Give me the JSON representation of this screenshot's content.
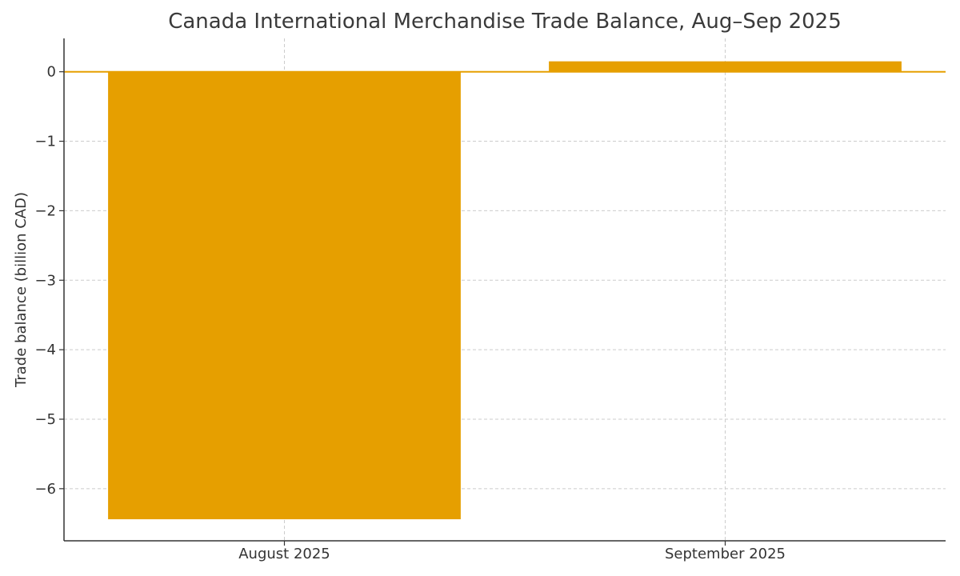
{
  "chart_data": {
    "type": "bar",
    "title": "Canada International Merchandise Trade Balance, Aug–Sep 2025",
    "xlabel": "",
    "ylabel": "Trade balance (billion CAD)",
    "categories": [
      "August 2025",
      "September 2025"
    ],
    "values": [
      -6.44,
      0.15
    ],
    "ylim": [
      -6.75,
      0.48
    ],
    "yticks": [
      0,
      -1,
      -2,
      -3,
      -4,
      -5,
      -6
    ],
    "ytick_labels": [
      "0",
      "−1",
      "−2",
      "−3",
      "−4",
      "−5",
      "−6"
    ],
    "grid": true,
    "zero_line": true,
    "bar_color": "#E69F00",
    "legend": "none"
  }
}
